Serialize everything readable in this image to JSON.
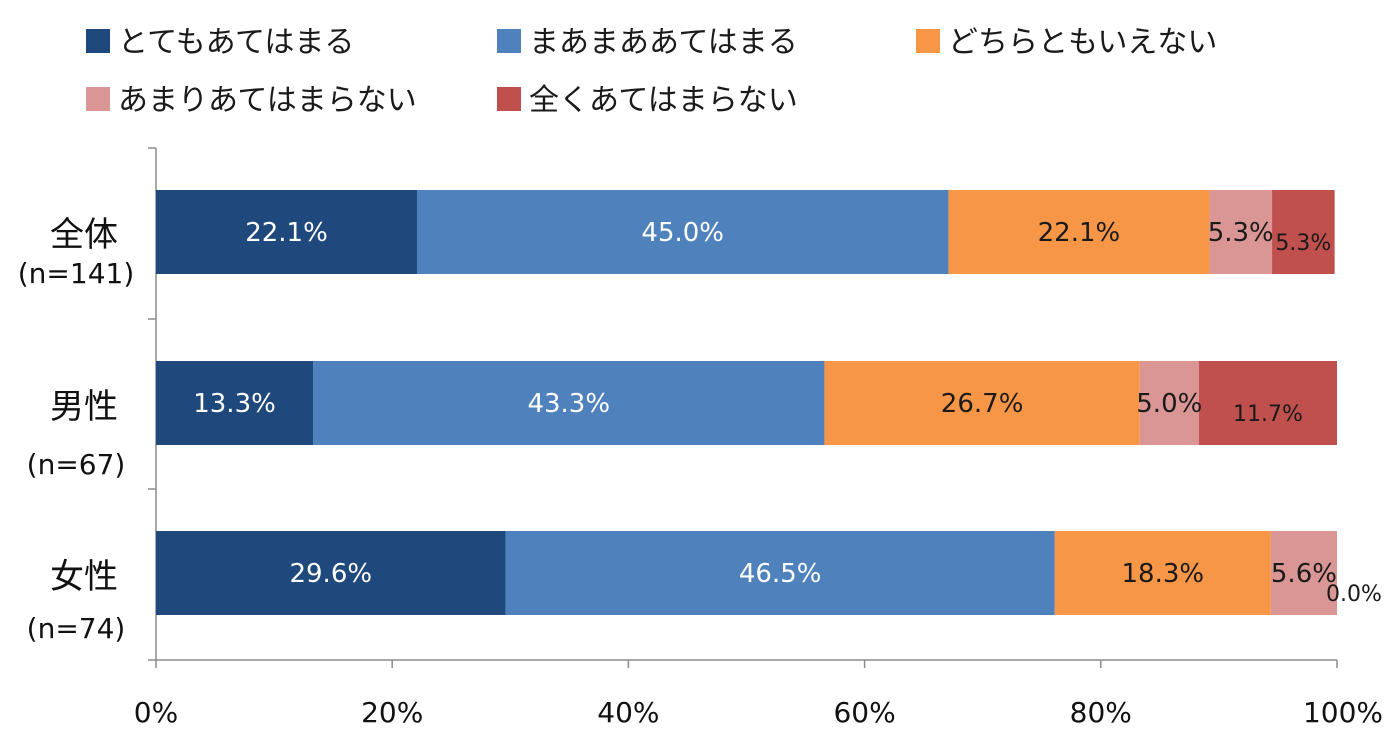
{
  "chart_data": {
    "type": "bar",
    "orientation": "horizontal",
    "stacked": true,
    "categories": [
      {
        "name": "全体",
        "n": "(n=141)"
      },
      {
        "name": "男性",
        "n": "(n=67)"
      },
      {
        "name": "女性",
        "n": "(n=74)"
      }
    ],
    "series": [
      {
        "name": "とてもあてはまる",
        "color": "#1F497D",
        "label_color": "#ffffff",
        "values": [
          22.1,
          13.3,
          29.6
        ],
        "labels": [
          "22.1%",
          "13.3%",
          "29.6%"
        ]
      },
      {
        "name": "まあまああてはまる",
        "color": "#4F81BD",
        "label_color": "#ffffff",
        "values": [
          45.0,
          43.3,
          46.5
        ],
        "labels": [
          "45.0%",
          "43.3%",
          "46.5%"
        ]
      },
      {
        "name": "どちらともいえない",
        "color": "#F79646",
        "label_color": "#1a1a1a",
        "values": [
          22.1,
          26.7,
          18.3
        ],
        "labels": [
          "22.1%",
          "26.7%",
          "18.3%"
        ]
      },
      {
        "name": "あまりあてはまらない",
        "color": "#D99694",
        "label_color": "#1a1a1a",
        "values": [
          5.3,
          5.0,
          5.6
        ],
        "labels": [
          "5.3%",
          "5.0%",
          "5.6%"
        ]
      },
      {
        "name": "全くあてはまらない",
        "color": "#C0504D",
        "label_color": "#1a1a1a",
        "values": [
          5.3,
          11.7,
          0.0
        ],
        "labels": [
          "5.3%",
          "11.7%",
          "0.0%"
        ]
      }
    ],
    "xlim": [
      0,
      100
    ],
    "xticks": [
      "0%",
      "20%",
      "40%",
      "60%",
      "80%",
      "100%"
    ],
    "grid": false,
    "legend_position": "top"
  }
}
